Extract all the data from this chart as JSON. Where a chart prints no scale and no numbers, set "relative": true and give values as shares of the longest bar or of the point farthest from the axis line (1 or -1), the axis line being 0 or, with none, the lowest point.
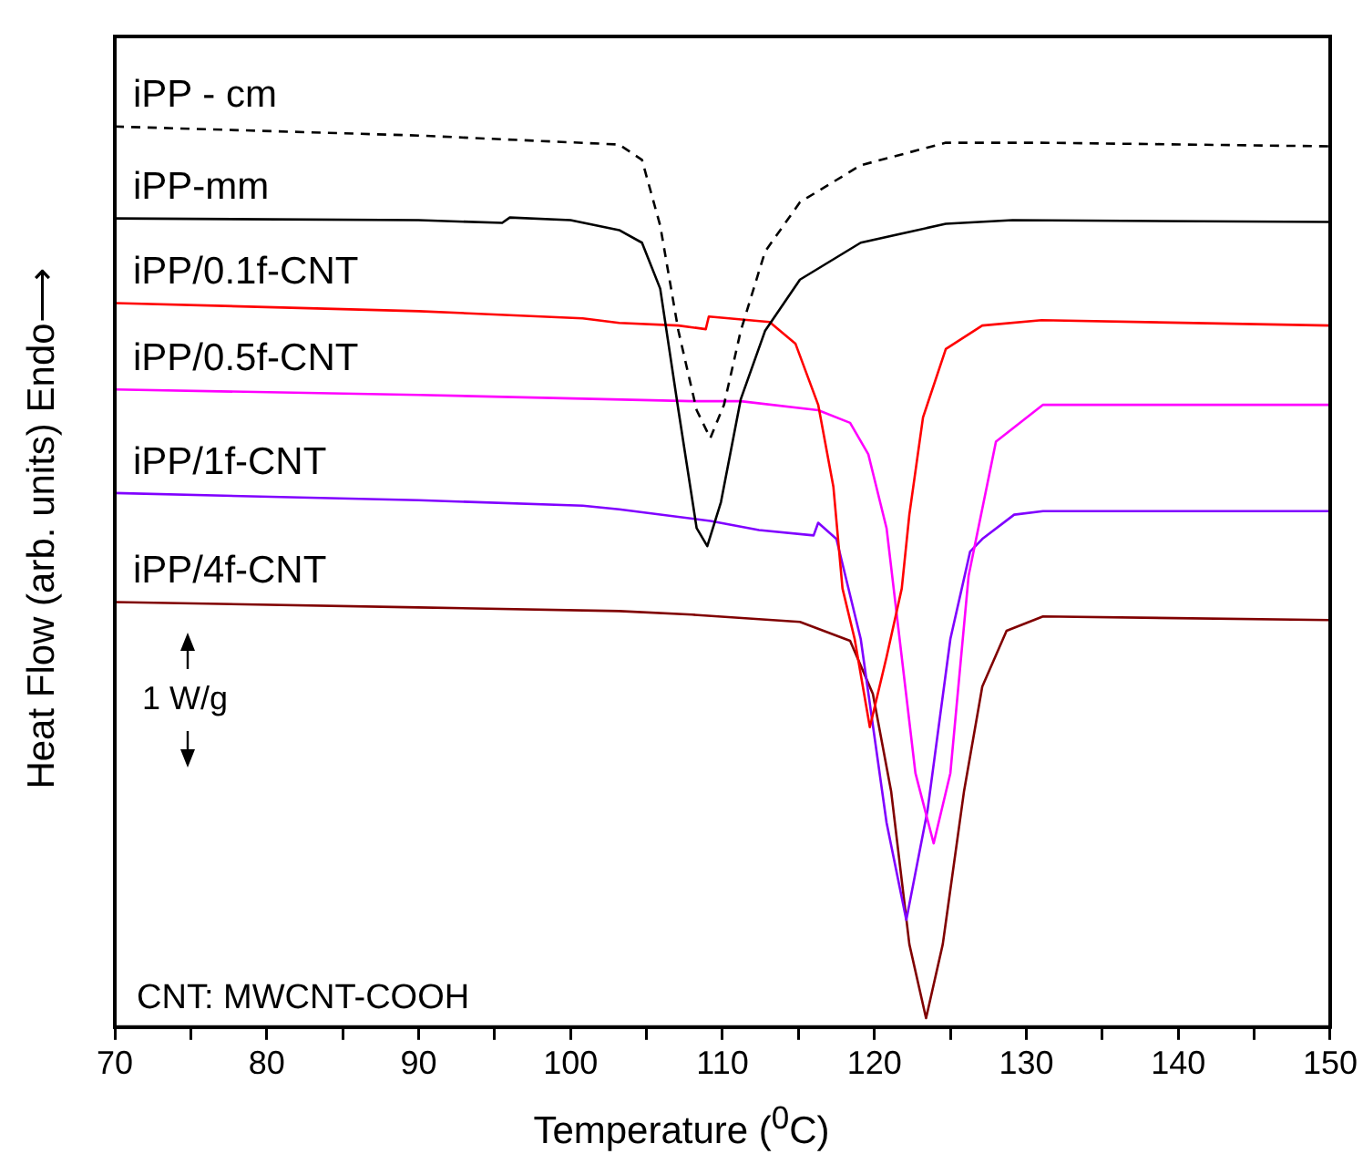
{
  "chart_data": {
    "type": "line",
    "relative": true,
    "xlabel": "Temperature ($^{0}$C)",
    "ylabel": "Heat Flow (arb. units) Endo⟶",
    "xlim": [
      70,
      150
    ],
    "xticks": [
      70,
      {
        "value": 75,
        "label": null
      },
      80,
      {
        "value": 85,
        "label": null
      },
      90,
      {
        "value": 95,
        "label": null
      },
      100,
      {
        "value": 105,
        "label": null
      },
      110,
      {
        "value": 115,
        "label": null
      },
      120,
      {
        "value": 125,
        "label": null
      },
      130,
      {
        "value": 135,
        "label": null
      },
      140,
      {
        "value": 145,
        "label": null
      },
      150
    ],
    "grid": false,
    "legend": false,
    "annotations": [
      "1 W/g",
      "CNT: MWCNT-COOH"
    ],
    "series": [
      {
        "name": "iPP - cm",
        "color": "#000000",
        "line_style": "dashed",
        "x": [
          70,
          90,
          103.2,
          104.7,
          105.9,
          107.1,
          108.3,
          109.2,
          110.1,
          111.2,
          112.8,
          115.1,
          119.1,
          124.7,
          131,
          150
        ],
        "values": [
          1.0,
          0.99,
          0.98,
          0.963,
          0.89,
          0.773,
          0.685,
          0.654,
          0.691,
          0.773,
          0.861,
          0.916,
          0.957,
          0.982,
          0.982,
          0.978
        ]
      },
      {
        "name": "iPP-mm",
        "color": "#000000",
        "line_style": "solid",
        "x": [
          70,
          90,
          95.5,
          96,
          100,
          103.2,
          104.7,
          105.9,
          107.1,
          108.3,
          109,
          109.9,
          111.2,
          112.8,
          115.1,
          119.1,
          124.7,
          129.1,
          150
        ],
        "values": [
          0.898,
          0.896,
          0.893,
          0.899,
          0.896,
          0.885,
          0.871,
          0.82,
          0.685,
          0.554,
          0.534,
          0.583,
          0.697,
          0.773,
          0.83,
          0.871,
          0.892,
          0.896,
          0.894
        ]
      },
      {
        "name": "iPP/0.1f-CNT",
        "color": "#ff0000",
        "line_style": "solid",
        "x": [
          70,
          90,
          100.8,
          103.2,
          107.1,
          108.9,
          109.1,
          113.1,
          114.8,
          116.3,
          117.3,
          117.9,
          118.7,
          119.7,
          120.8,
          121.8,
          122.3,
          123.2,
          124.7,
          127.1,
          131,
          150
        ],
        "values": [
          0.804,
          0.795,
          0.787,
          0.782,
          0.779,
          0.775,
          0.789,
          0.783,
          0.759,
          0.691,
          0.6,
          0.487,
          0.431,
          0.333,
          0.411,
          0.487,
          0.569,
          0.677,
          0.753,
          0.779,
          0.785,
          0.779
        ]
      },
      {
        "name": "iPP/0.5f-CNT",
        "color": "#ff00ff",
        "line_style": "solid",
        "x": [
          70,
          90,
          108,
          111.2,
          116.3,
          118.4,
          119.6,
          120.8,
          122.7,
          123.9,
          125,
          126.2,
          128,
          131.1,
          150
        ],
        "values": [
          0.708,
          0.702,
          0.695,
          0.695,
          0.685,
          0.671,
          0.636,
          0.554,
          0.282,
          0.204,
          0.282,
          0.501,
          0.65,
          0.691,
          0.691
        ]
      },
      {
        "name": "iPP/1f-CNT",
        "color": "#8000ff",
        "line_style": "solid",
        "x": [
          70,
          90,
          100.8,
          103.2,
          109.2,
          112.4,
          116,
          116.3,
          117.5,
          119.1,
          120.8,
          122.1,
          123.5,
          125,
          126.3,
          127.1,
          129.2,
          131.1,
          150
        ],
        "values": [
          0.593,
          0.585,
          0.579,
          0.575,
          0.562,
          0.552,
          0.546,
          0.56,
          0.542,
          0.431,
          0.227,
          0.119,
          0.241,
          0.431,
          0.528,
          0.542,
          0.569,
          0.573,
          0.573
        ]
      },
      {
        "name": "iPP/4f-CNT",
        "color": "#800000",
        "line_style": "solid",
        "x": [
          70,
          90,
          103.2,
          108,
          115.1,
          118.4,
          119.9,
          121.1,
          122.3,
          123.4,
          124.5,
          125.9,
          127.1,
          128.7,
          131.1,
          150
        ],
        "values": [
          0.472,
          0.466,
          0.462,
          0.458,
          0.45,
          0.429,
          0.37,
          0.262,
          0.092,
          0.01,
          0.092,
          0.262,
          0.378,
          0.44,
          0.456,
          0.452
        ]
      }
    ]
  }
}
